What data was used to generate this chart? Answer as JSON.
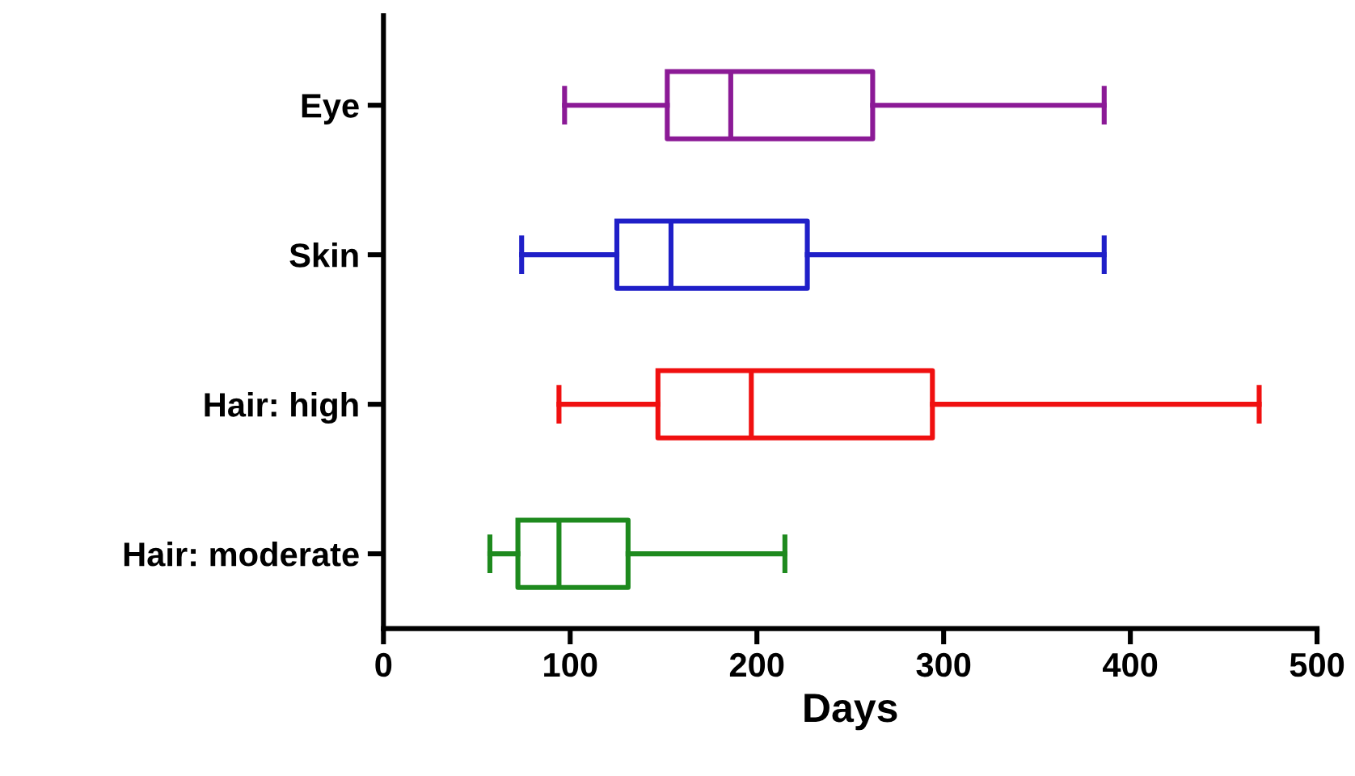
{
  "chart_data": {
    "type": "box",
    "orientation": "horizontal",
    "xlabel": "Days",
    "categories": [
      "Eye",
      "Skin",
      "Hair: high",
      "Hair: moderate"
    ],
    "colors": [
      "#8b1a96",
      "#1f1fc8",
      "#f01010",
      "#1e8a1e"
    ],
    "boxes": [
      {
        "low": 97,
        "q1": 152,
        "median": 186,
        "q3": 262,
        "high": 386
      },
      {
        "low": 74,
        "q1": 125,
        "median": 154,
        "q3": 227,
        "high": 386
      },
      {
        "low": 94,
        "q1": 147,
        "median": 197,
        "q3": 294,
        "high": 469
      },
      {
        "low": 57,
        "q1": 72,
        "median": 94,
        "q3": 131,
        "high": 215
      }
    ],
    "xlim": [
      0,
      500
    ],
    "xticks": [
      0,
      100,
      200,
      300,
      400,
      500
    ],
    "grid": false
  }
}
